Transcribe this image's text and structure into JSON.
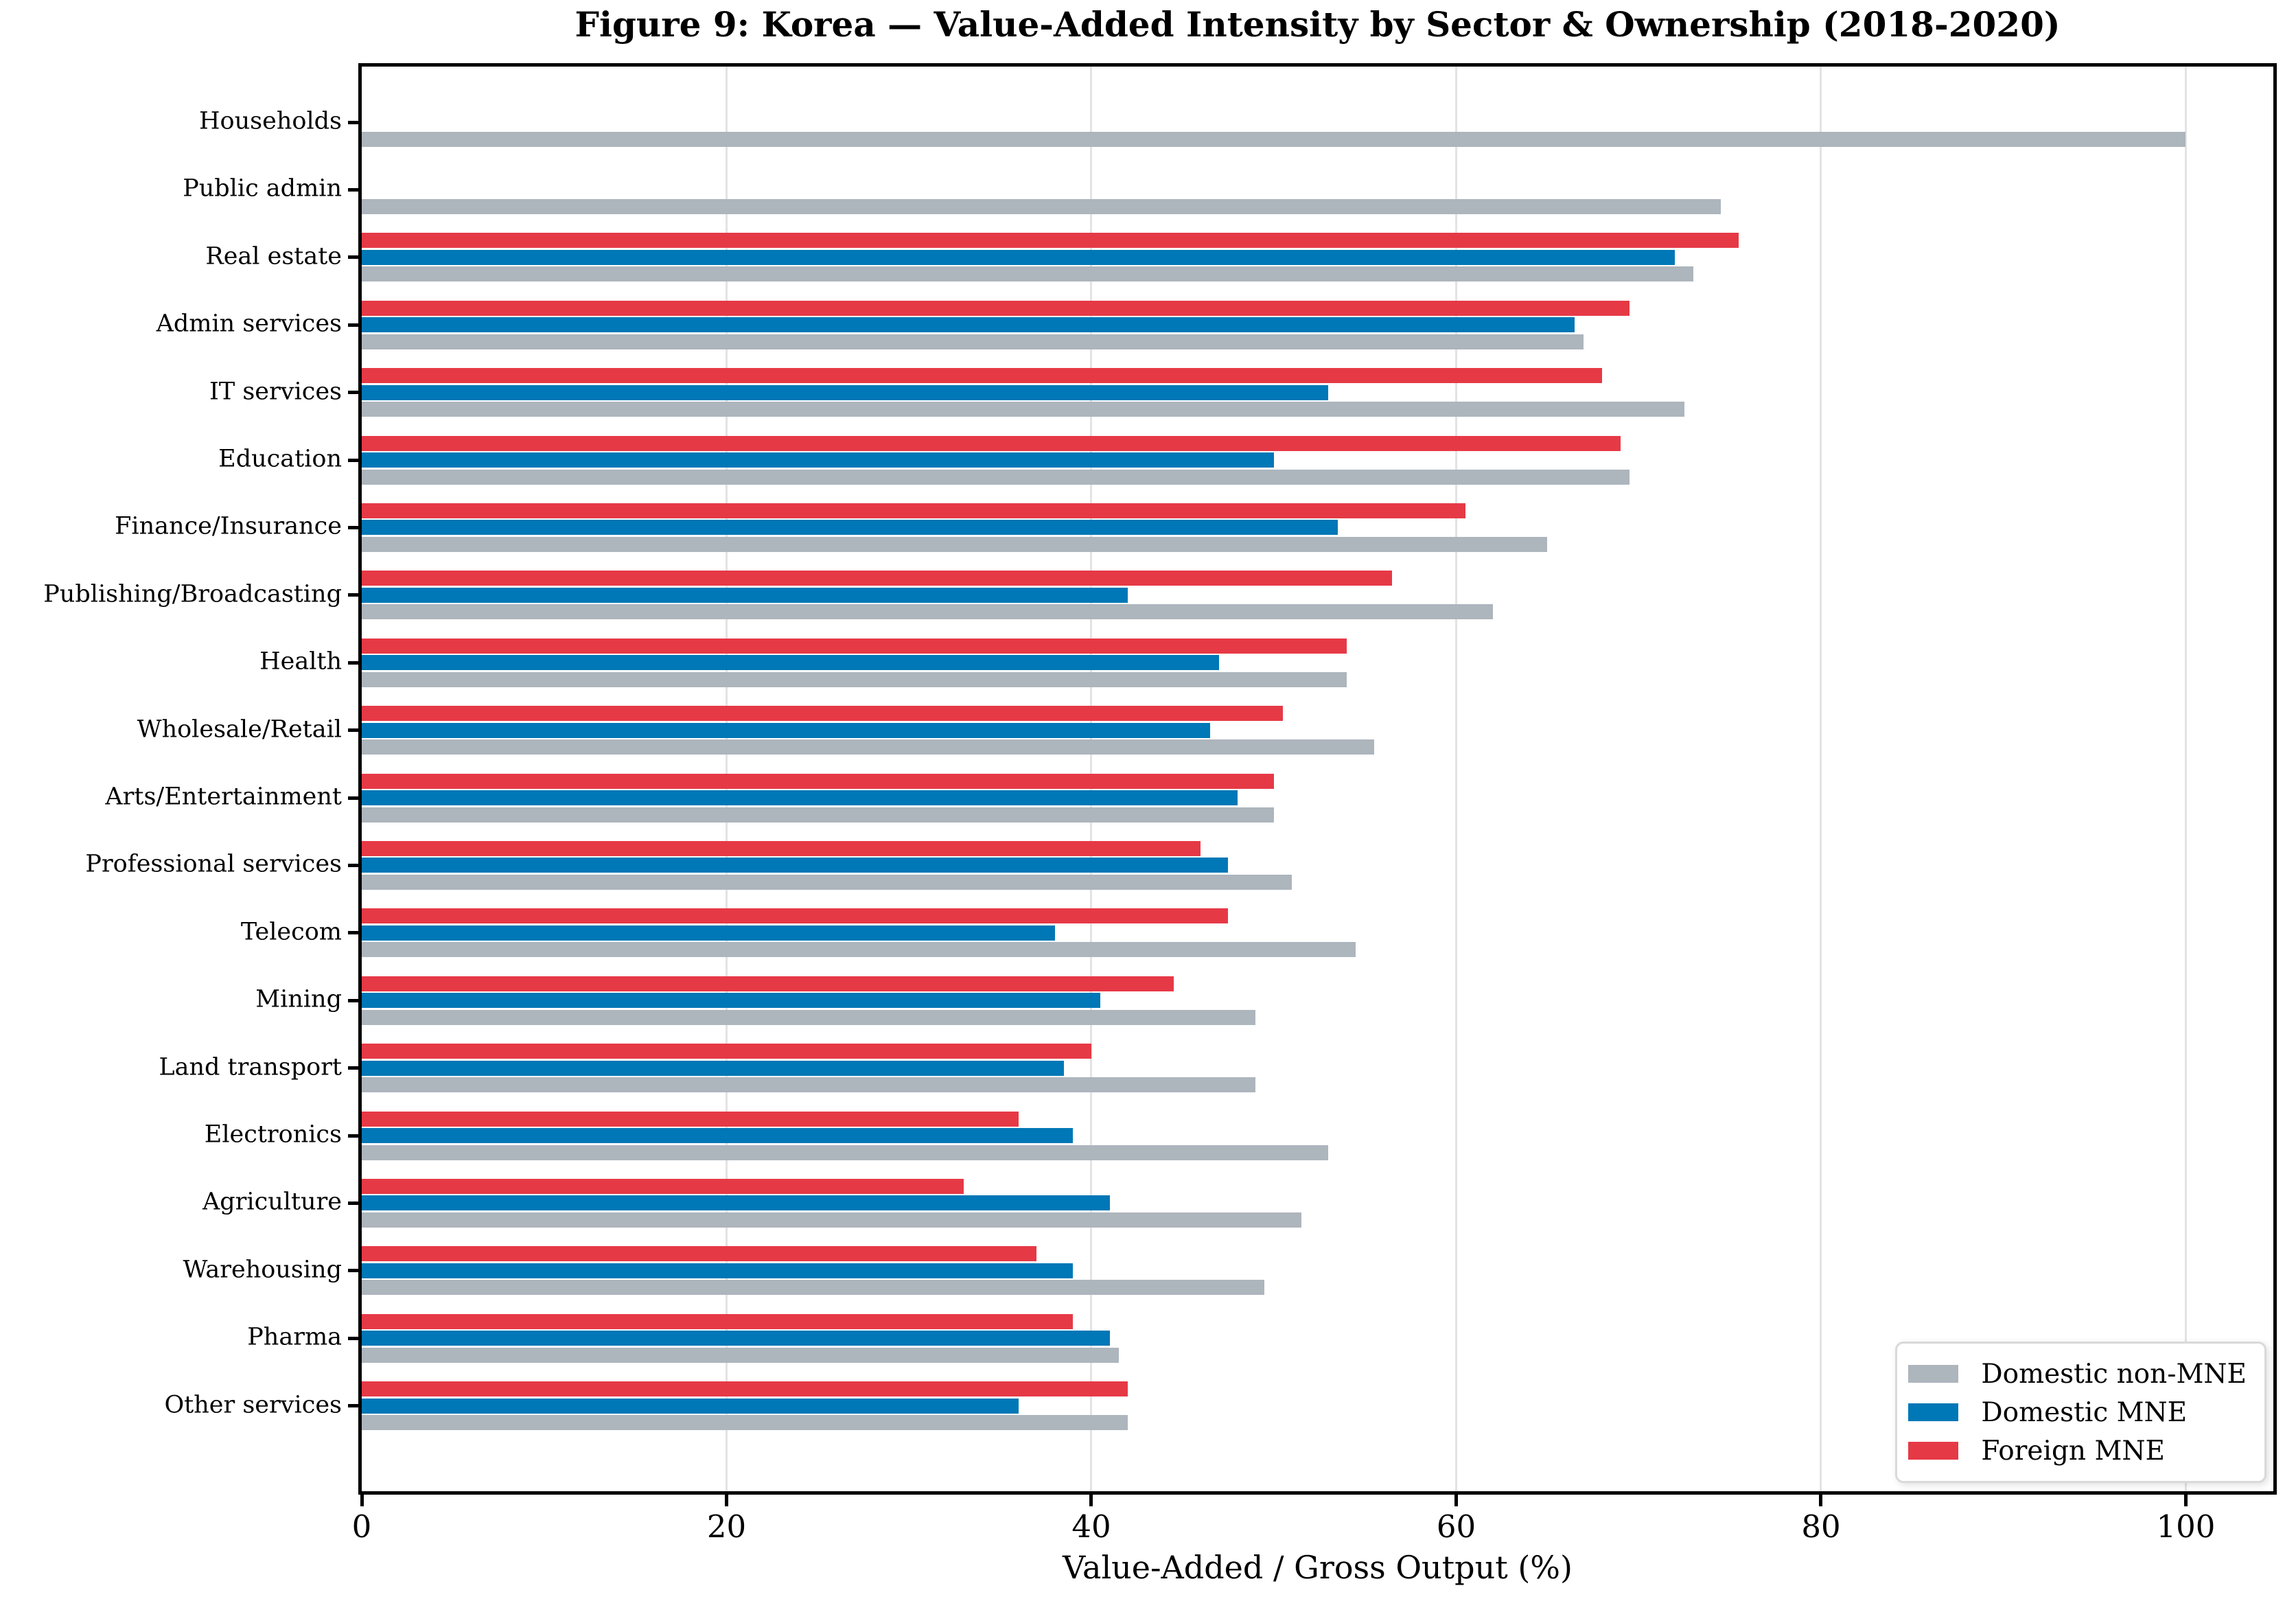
{
  "chart_data": {
    "type": "bar",
    "orientation": "horizontal",
    "title": "Figure 9: Korea — Value-Added Intensity by Sector & Ownership (2018-2020)",
    "xlabel": "Value-Added / Gross Output (%)",
    "ylabel": "",
    "xlim": [
      0,
      104.8
    ],
    "xticks": [
      0,
      20,
      40,
      60,
      80,
      100
    ],
    "grid": "vertical, light gray, behind bars",
    "legend_position": "lower right",
    "bar_order_top_to_bottom": [
      "Foreign MNE",
      "Domestic MNE",
      "Domestic non-MNE"
    ],
    "categories": [
      "Households",
      "Public admin",
      "Real estate",
      "Admin services",
      "IT services",
      "Education",
      "Finance/Insurance",
      "Publishing/Broadcasting",
      "Health",
      "Wholesale/Retail",
      "Arts/Entertainment",
      "Professional services",
      "Telecom",
      "Mining",
      "Land transport",
      "Electronics",
      "Agriculture",
      "Warehousing",
      "Pharma",
      "Other services"
    ],
    "series": [
      {
        "name": "Domestic non-MNE",
        "color": "#adb5bd",
        "values": [
          100,
          74.5,
          73,
          67,
          72.5,
          69.5,
          65,
          62,
          54,
          55.5,
          50,
          51,
          54.5,
          49,
          49,
          53,
          51.5,
          49.5,
          41.5,
          42
        ]
      },
      {
        "name": "Domestic MNE",
        "color": "#0077b6",
        "values": [
          0,
          0,
          72,
          66.5,
          53,
          50,
          53.5,
          42,
          47,
          46.5,
          48,
          47.5,
          38,
          40.5,
          38.5,
          39,
          41,
          39,
          41,
          36
        ]
      },
      {
        "name": "Foreign MNE",
        "color": "#e63946",
        "values": [
          0,
          0,
          75.5,
          69.5,
          68,
          69,
          60.5,
          56.5,
          54,
          50.5,
          50,
          46,
          47.5,
          44.5,
          40,
          36,
          33,
          37,
          39,
          42
        ]
      }
    ]
  },
  "colors": {
    "spine": "#000000",
    "gridline": "#e3e3e3",
    "background": "#ffffff",
    "legend_border": "#d9d9d9"
  }
}
